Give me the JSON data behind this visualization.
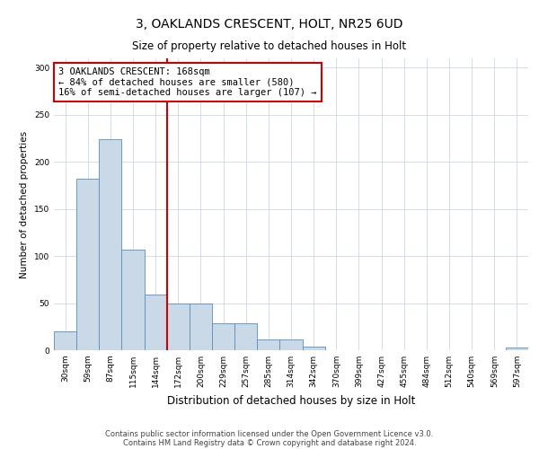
{
  "title_line1": "3, OAKLANDS CRESCENT, HOLT, NR25 6UD",
  "title_line2": "Size of property relative to detached houses in Holt",
  "xlabel": "Distribution of detached houses by size in Holt",
  "ylabel": "Number of detached properties",
  "bin_labels": [
    "30sqm",
    "59sqm",
    "87sqm",
    "115sqm",
    "144sqm",
    "172sqm",
    "200sqm",
    "229sqm",
    "257sqm",
    "285sqm",
    "314sqm",
    "342sqm",
    "370sqm",
    "399sqm",
    "427sqm",
    "455sqm",
    "484sqm",
    "512sqm",
    "540sqm",
    "569sqm",
    "597sqm"
  ],
  "bar_values": [
    20,
    182,
    224,
    107,
    59,
    50,
    50,
    29,
    29,
    11,
    11,
    4,
    0,
    0,
    0,
    0,
    0,
    0,
    0,
    0,
    3
  ],
  "bar_color": "#c9d9e8",
  "bar_edge_color": "#5b8db8",
  "vline_index": 5,
  "vline_color": "#cc0000",
  "annotation_text": "3 OAKLANDS CRESCENT: 168sqm\n← 84% of detached houses are smaller (580)\n16% of semi-detached houses are larger (107) →",
  "annotation_box_color": "#cc0000",
  "ylim": [
    0,
    310
  ],
  "yticks": [
    0,
    50,
    100,
    150,
    200,
    250,
    300
  ],
  "footnote_line1": "Contains HM Land Registry data © Crown copyright and database right 2024.",
  "footnote_line2": "Contains public sector information licensed under the Open Government Licence v3.0.",
  "background_color": "#ffffff",
  "grid_color": "#ccd8e8",
  "title1_fontsize": 10,
  "title2_fontsize": 8.5,
  "ylabel_fontsize": 7.5,
  "xlabel_fontsize": 8.5,
  "tick_fontsize": 6.5,
  "annot_fontsize": 7.5,
  "footnote_fontsize": 6.0
}
